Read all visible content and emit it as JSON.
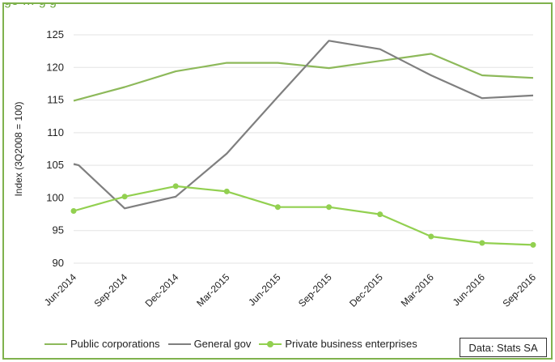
{
  "top_text": "ge  …       g          g",
  "chart_data": {
    "type": "line",
    "ylabel": "Index (3Q2008 = 100)",
    "ylim": [
      90,
      125
    ],
    "yticks": [
      90,
      95,
      100,
      105,
      110,
      115,
      120,
      125
    ],
    "categories": [
      "Jun-2014",
      "Sep-2014",
      "Dec-2014",
      "Mar-2015",
      "Jun-2015",
      "Sep-2015",
      "Dec-2015",
      "Mar-2016",
      "Jun-2016",
      "Sep-2016"
    ],
    "grid": true,
    "legend_position": "bottom",
    "series": [
      {
        "name": "Public corporations",
        "color": "#8db95a",
        "markers": false,
        "values": [
          114.9,
          117.0,
          119.4,
          120.7,
          120.7,
          119.9,
          121.0,
          122.1,
          118.8,
          118.4
        ]
      },
      {
        "name": "General gov",
        "color": "#7f7f7f",
        "markers": false,
        "points": [
          [
            0,
            105.2
          ],
          [
            0.1,
            105.0
          ],
          [
            1,
            98.4
          ],
          [
            2,
            100.2
          ],
          [
            3,
            106.8
          ],
          [
            4,
            115.5
          ],
          [
            5,
            124.1
          ],
          [
            6,
            122.8
          ],
          [
            7,
            118.8
          ],
          [
            8,
            115.3
          ],
          [
            9,
            115.7
          ]
        ]
      },
      {
        "name": "Private business enterprises",
        "color": "#92d050",
        "markers": true,
        "values": [
          98.0,
          100.2,
          101.8,
          101.0,
          98.6,
          98.6,
          97.5,
          94.1,
          93.1,
          92.8
        ]
      }
    ],
    "source": "Data: Stats SA"
  }
}
